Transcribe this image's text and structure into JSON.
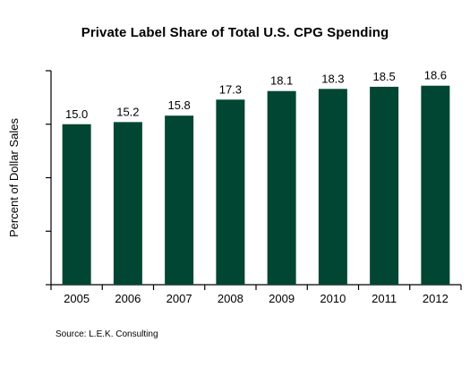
{
  "chart_data": {
    "type": "bar",
    "title": "Private Label Share of Total U.S. CPG Spending",
    "ylabel": "Percent of Dollar Sales",
    "xlabel": "",
    "categories": [
      "2005",
      "2006",
      "2007",
      "2008",
      "2009",
      "2010",
      "2011",
      "2012"
    ],
    "values": [
      15.0,
      15.2,
      15.8,
      17.3,
      18.1,
      18.3,
      18.5,
      18.6
    ],
    "value_labels": [
      "15.0",
      "15.2",
      "15.8",
      "17.3",
      "18.1",
      "18.3",
      "18.5",
      "18.6"
    ],
    "ylim": [
      0,
      20
    ],
    "y_tick_count": 4,
    "grid": false,
    "bar_color": "#004632",
    "axis_color": "#000000"
  },
  "source": "Source: L.E.K. Consulting"
}
